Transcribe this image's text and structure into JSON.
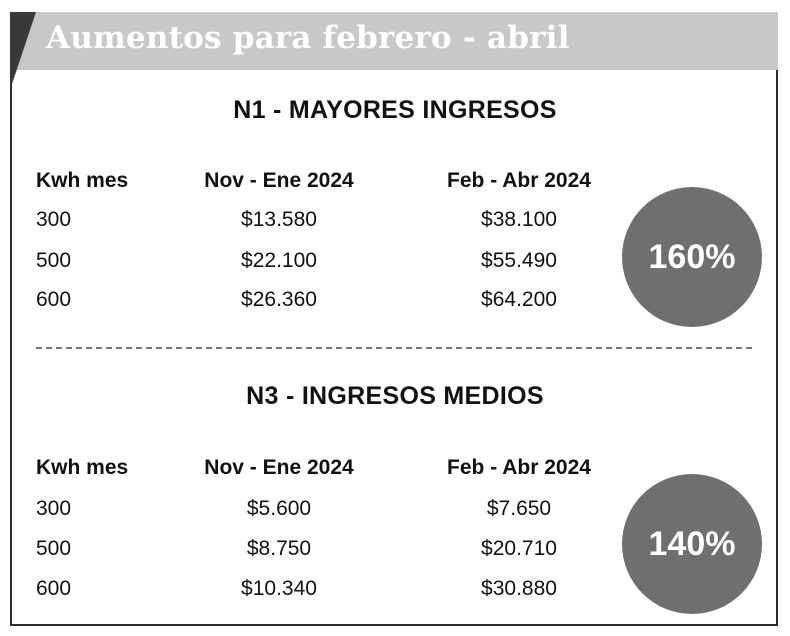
{
  "header": {
    "title": "Aumentos para febrero - abril"
  },
  "sections": [
    {
      "title": "N1 - MAYORES INGRESOS",
      "columns": [
        "Kwh mes",
        "Nov - Ene 2024",
        "Feb - Abr 2024"
      ],
      "rows": [
        [
          "300",
          "$13.580",
          "$38.100"
        ],
        [
          "500",
          "$22.100",
          "$55.490"
        ],
        [
          "600",
          "$26.360",
          "$64.200"
        ]
      ],
      "increase": "160%"
    },
    {
      "title": "N3 - INGRESOS MEDIOS",
      "columns": [
        "Kwh mes",
        "Nov - Ene 2024",
        "Feb - Abr 2024"
      ],
      "rows": [
        [
          "300",
          "$5.600",
          "$7.650"
        ],
        [
          "500",
          "$8.750",
          "$20.710"
        ],
        [
          "600",
          "$10.340",
          "$30.880"
        ]
      ],
      "increase": "140%"
    }
  ],
  "colors": {
    "header_band": "#c8c8c8",
    "circle": "#6f6f6f",
    "fold": "#3a3a3a"
  }
}
